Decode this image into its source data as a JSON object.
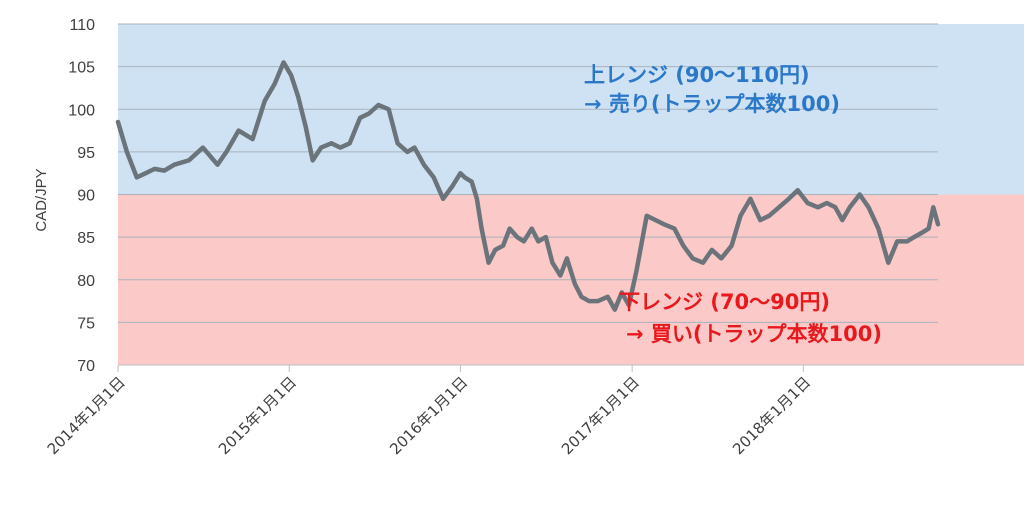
{
  "chart_data": {
    "type": "line",
    "title": "",
    "ylabel": "CAD/JPY",
    "xlabel": "",
    "ylim": [
      70,
      110
    ],
    "yticks": [
      "70",
      "75",
      "80",
      "85",
      "90",
      "95",
      "100",
      "105",
      "110"
    ],
    "xlim": [
      "2014-01-01",
      "2018-10-15"
    ],
    "xtick_labels": [
      "2014年1月1日",
      "2015年1月1日",
      "2016年1月1日",
      "2017年1月1日",
      "2018年1月1日"
    ],
    "grid": true,
    "series": [
      {
        "color": "#6b747b",
        "x": [
          "2014-01-01",
          "2014-01-20",
          "2014-02-10",
          "2014-03-01",
          "2014-03-20",
          "2014-04-10",
          "2014-05-01",
          "2014-06-01",
          "2014-07-01",
          "2014-08-01",
          "2014-08-20",
          "2014-09-15",
          "2014-10-15",
          "2014-11-10",
          "2014-12-01",
          "2014-12-20",
          "2015-01-05",
          "2015-01-20",
          "2015-02-05",
          "2015-02-20",
          "2015-03-10",
          "2015-04-01",
          "2015-04-20",
          "2015-05-10",
          "2015-06-01",
          "2015-06-20",
          "2015-07-10",
          "2015-08-01",
          "2015-08-20",
          "2015-09-10",
          "2015-09-25",
          "2015-10-15",
          "2015-11-05",
          "2015-11-25",
          "2015-12-15",
          "2016-01-01",
          "2016-01-10",
          "2016-01-25",
          "2016-02-05",
          "2016-02-15",
          "2016-03-01",
          "2016-03-15",
          "2016-04-01",
          "2016-04-15",
          "2016-05-01",
          "2016-05-15",
          "2016-06-01",
          "2016-06-15",
          "2016-07-01",
          "2016-07-15",
          "2016-08-01",
          "2016-08-15",
          "2016-09-01",
          "2016-09-15",
          "2016-10-01",
          "2016-10-20",
          "2016-11-10",
          "2016-11-25",
          "2016-12-10",
          "2016-12-25",
          "2017-01-10",
          "2017-02-01",
          "2017-02-20",
          "2017-03-10",
          "2017-04-01",
          "2017-04-20",
          "2017-05-10",
          "2017-06-01",
          "2017-06-20",
          "2017-07-10",
          "2017-08-01",
          "2017-08-20",
          "2017-09-10",
          "2017-10-01",
          "2017-10-20",
          "2017-11-10",
          "2017-12-01",
          "2017-12-20",
          "2018-01-10",
          "2018-02-01",
          "2018-02-20",
          "2018-03-10",
          "2018-03-25",
          "2018-04-10",
          "2018-05-01",
          "2018-05-20",
          "2018-06-10",
          "2018-07-01",
          "2018-07-20",
          "2018-08-10",
          "2018-08-25",
          "2018-09-10",
          "2018-09-25",
          "2018-10-05",
          "2018-10-15"
        ],
        "values": [
          98.5,
          95.0,
          92.0,
          92.5,
          93.0,
          92.8,
          93.5,
          94.0,
          95.5,
          93.5,
          95.0,
          97.5,
          96.5,
          101.0,
          103.0,
          105.5,
          104.0,
          101.5,
          98.0,
          94.0,
          95.5,
          96.0,
          95.5,
          96.0,
          99.0,
          99.5,
          100.5,
          100.0,
          96.0,
          95.0,
          95.5,
          93.5,
          92.0,
          89.5,
          91.0,
          92.5,
          92.0,
          91.5,
          89.5,
          86.0,
          82.0,
          83.5,
          84.0,
          86.0,
          85.0,
          84.5,
          86.0,
          84.5,
          85.0,
          82.0,
          80.5,
          82.5,
          79.5,
          78.0,
          77.5,
          77.5,
          78.0,
          76.5,
          78.5,
          77.0,
          81.0,
          87.5,
          87.0,
          86.5,
          86.0,
          84.0,
          82.5,
          82.0,
          83.5,
          82.5,
          84.0,
          87.5,
          89.5,
          87.0,
          87.5,
          88.5,
          89.5,
          90.5,
          89.0,
          88.5,
          89.0,
          88.5,
          87.0,
          88.5,
          90.0,
          88.5,
          86.0,
          82.0,
          84.5,
          84.5,
          85.0,
          85.5,
          86.0,
          88.5,
          86.5
        ]
      }
    ],
    "bands": [
      {
        "from": 90,
        "to": 110,
        "color": "#cfe2f3",
        "label_lines": [
          "上レンジ (90〜110円)",
          "→ 売り(トラップ本数100)"
        ]
      },
      {
        "from": 70,
        "to": 90,
        "color": "#fcc9c9",
        "label_lines": [
          "下レンジ (70〜90円)",
          "→ 買い(トラップ本数100)"
        ]
      }
    ]
  }
}
